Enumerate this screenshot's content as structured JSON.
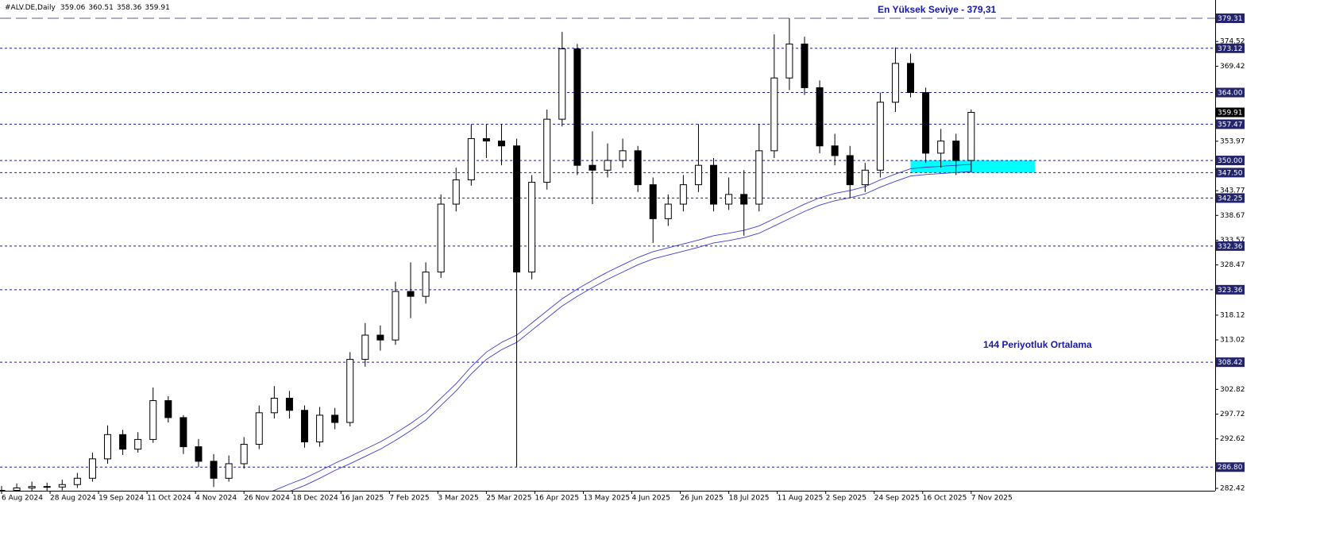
{
  "chart_data": {
    "type": "candlestick",
    "symbol": "#ALV.DE,Daily",
    "last_ohlc": [
      359.06,
      360.51,
      358.36,
      359.91
    ],
    "current_price": 359.91,
    "annotations": [
      "En Yüksek Seviye - 379,31",
      "144 Periyotluk Ortalama"
    ],
    "xlim": [
      0,
      400
    ],
    "ylim": [
      281.93,
      383.07
    ],
    "xticks": [
      {
        "value": 0,
        "label": "6 Aug 2024"
      },
      {
        "value": 16,
        "label": "28 Aug 2024"
      },
      {
        "value": 32,
        "label": "19 Sep 2024"
      },
      {
        "value": 48,
        "label": "11 Oct 2024"
      },
      {
        "value": 64,
        "label": "4 Nov 2024"
      },
      {
        "value": 80,
        "label": "26 Nov 2024"
      },
      {
        "value": 96,
        "label": "18 Dec 2024"
      },
      {
        "value": 112,
        "label": "16 Jan 2025"
      },
      {
        "value": 128,
        "label": "7 Feb 2025"
      },
      {
        "value": 144,
        "label": "3 Mar 2025"
      },
      {
        "value": 160,
        "label": "25 Mar 2025"
      },
      {
        "value": 176,
        "label": "16 Apr 2025"
      },
      {
        "value": 192,
        "label": "13 May 2025"
      },
      {
        "value": 208,
        "label": "4 Jun 2025"
      },
      {
        "value": 224,
        "label": "26 Jun 2025"
      },
      {
        "value": 240,
        "label": "18 Jul 2025"
      },
      {
        "value": 256,
        "label": "11 Aug 2025"
      },
      {
        "value": 272,
        "label": "2 Sep 2025"
      },
      {
        "value": 288,
        "label": "24 Sep 2025"
      },
      {
        "value": 304,
        "label": "16 Oct 2025"
      },
      {
        "value": 320,
        "label": "7 Nov 2025"
      }
    ],
    "yticks": [
      374.52,
      369.42,
      353.97,
      343.77,
      338.67,
      333.57,
      328.47,
      318.12,
      313.02,
      302.82,
      297.72,
      292.62,
      282.42
    ],
    "high_line": 379.31,
    "levels": [
      373.12,
      {
        "value": 364,
        "label": "364.00"
      },
      357.47,
      {
        "value": 350,
        "label": "350.00"
      },
      {
        "value": 347.5,
        "label": "347.50"
      },
      342.25,
      332.36,
      323.36,
      308.42,
      {
        "value": 286.8,
        "label": "286.80"
      }
    ],
    "zone": {
      "xlim": [
        300,
        341
      ],
      "ylim": [
        347.5,
        350
      ],
      "color": "#00ffff"
    },
    "x": [
      0,
      5,
      10,
      15,
      20,
      25,
      30,
      35,
      40,
      45,
      50,
      55,
      60,
      65,
      70,
      75,
      80,
      85,
      90,
      95,
      100,
      105,
      110,
      115,
      120,
      125,
      130,
      135,
      140,
      145,
      150,
      155,
      160,
      165,
      170,
      175,
      180,
      185,
      190,
      195,
      200,
      205,
      210,
      215,
      220,
      225,
      230,
      235,
      240,
      245,
      250,
      255,
      260,
      265,
      270,
      275,
      280,
      285,
      290,
      295,
      300,
      305,
      310,
      315,
      320
    ],
    "open": [
      281.6,
      282.0,
      282.5,
      282.8,
      282.7,
      283.2,
      284.5,
      288.5,
      293.5,
      290.5,
      292.5,
      300.5,
      297,
      291,
      288,
      284.5,
      287.5,
      291.5,
      298,
      301,
      298.5,
      292,
      297.5,
      296,
      309,
      314,
      313,
      323,
      322,
      327,
      341,
      346,
      354.5,
      354,
      353,
      327,
      345.5,
      358.5,
      373,
      349,
      348,
      350,
      352,
      345,
      338,
      341,
      345,
      349,
      341,
      343,
      341,
      352,
      367,
      374,
      365,
      353,
      351,
      345,
      348,
      362,
      370,
      364,
      351.5,
      354,
      350
    ],
    "high": [
      282.9,
      283.4,
      283.8,
      283.6,
      284.2,
      285.6,
      289.8,
      295.4,
      294.5,
      294,
      303.2,
      301.4,
      297.5,
      292.6,
      289.5,
      289.2,
      293,
      299.5,
      303.5,
      302.5,
      299.5,
      299.2,
      299,
      310.5,
      316.5,
      316,
      325,
      329,
      329,
      343,
      348.5,
      357.5,
      357.5,
      357.5,
      354.5,
      347,
      360.5,
      376.5,
      374,
      356,
      353.5,
      354.5,
      353,
      346.5,
      343,
      347,
      357.5,
      350.5,
      346.5,
      348,
      357.5,
      376,
      379.31,
      375.5,
      366.5,
      355.5,
      353,
      349.5,
      364,
      373.3,
      372,
      365,
      356.5,
      355.5,
      360.51
    ],
    "low": [
      280.8,
      281.3,
      281.6,
      281.7,
      282,
      282.5,
      283.8,
      287.5,
      289.3,
      289.8,
      291.8,
      296,
      289.5,
      286.8,
      282.7,
      283.8,
      286.5,
      290.5,
      296.8,
      296.8,
      290.8,
      291,
      294.6,
      295.2,
      307.5,
      310.8,
      312,
      317.5,
      320.5,
      325.8,
      339.5,
      344.8,
      350.5,
      349,
      286.8,
      325.5,
      344,
      357,
      347,
      341,
      346.5,
      348.5,
      343.5,
      333,
      336.5,
      339.5,
      343.5,
      339.5,
      339.8,
      334.5,
      339.5,
      350.5,
      364.5,
      363.5,
      351.5,
      349,
      342.3,
      343.5,
      346.5,
      360,
      363,
      349.5,
      348.5,
      347,
      347.5
    ],
    "close": [
      282.0,
      282.5,
      282.8,
      282.7,
      283.2,
      284.5,
      288.5,
      293.5,
      290.5,
      292.5,
      300.5,
      297,
      291,
      288,
      284.5,
      287.5,
      291.5,
      298,
      301,
      298.5,
      292,
      297.5,
      296,
      309,
      314,
      313,
      323,
      322,
      327,
      341,
      346,
      354.5,
      354,
      353,
      327,
      345.5,
      358.5,
      373,
      349,
      348,
      350,
      352,
      345,
      338,
      341,
      345,
      349,
      341,
      343,
      341,
      352,
      367,
      374,
      365,
      353,
      351,
      345,
      348,
      362,
      370,
      364,
      351.5,
      354,
      350,
      359.91
    ],
    "overlays": [
      {
        "color": "#3c3cd2",
        "values": [
          null,
          null,
          null,
          null,
          null,
          null,
          null,
          null,
          null,
          null,
          null,
          null,
          null,
          null,
          null,
          null,
          null,
          280.8,
          282,
          283.3,
          284.5,
          286,
          287.6,
          289,
          290.5,
          292,
          293.8,
          295.8,
          298,
          301,
          304,
          307.5,
          310.5,
          312.5,
          314,
          316.5,
          319,
          321.5,
          323.5,
          325.3,
          327,
          328.5,
          330,
          331.2,
          332,
          332.8,
          333.6,
          334.5,
          335,
          335.6,
          336.5,
          338,
          339.5,
          341,
          342.3,
          343.2,
          343.8,
          344.6,
          346,
          347.2,
          348.3,
          348.6,
          348.8,
          349,
          349.2
        ]
      },
      {
        "color": "#3c3cd2",
        "values": [
          null,
          null,
          null,
          null,
          null,
          null,
          null,
          null,
          null,
          null,
          null,
          null,
          null,
          null,
          null,
          null,
          null,
          279.3,
          280.5,
          281.8,
          283,
          284.5,
          286.1,
          287.5,
          289,
          290.5,
          292.3,
          294.3,
          296.5,
          299.5,
          302.5,
          306,
          309,
          311,
          312.5,
          315,
          317.5,
          320,
          322,
          323.8,
          325.5,
          327,
          328.5,
          329.7,
          330.5,
          331.3,
          332.1,
          333,
          333.5,
          334.1,
          335,
          336.5,
          338,
          339.5,
          340.8,
          341.7,
          342.3,
          343.1,
          344.5,
          345.7,
          346.8,
          347.1,
          347.3,
          347.5,
          347.7
        ]
      }
    ]
  }
}
